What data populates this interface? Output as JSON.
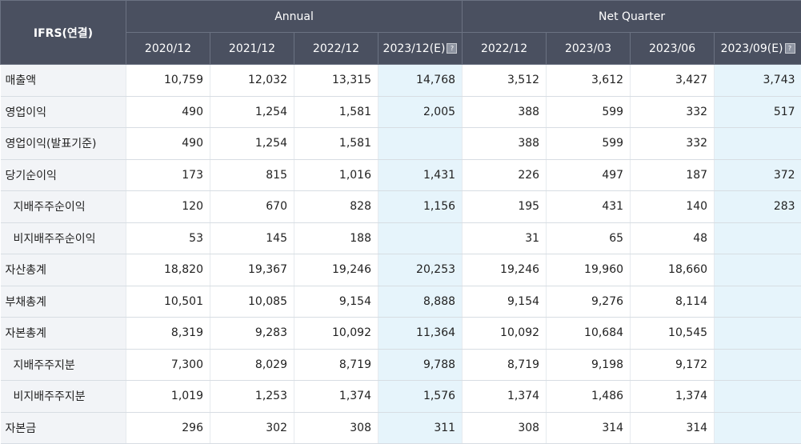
{
  "header": {
    "corner": "IFRS(연결)",
    "annual": "Annual",
    "quarter": "Net Quarter",
    "columns": [
      "2020/12",
      "2021/12",
      "2022/12",
      "2023/12(E)",
      "2022/12",
      "2023/03",
      "2023/06",
      "2023/09(E)"
    ]
  },
  "rows": [
    {
      "label": "매출액",
      "values": [
        "10,759",
        "12,032",
        "13,315",
        "14,768",
        "3,512",
        "3,612",
        "3,427",
        "3,743"
      ]
    },
    {
      "label": "영업이익",
      "values": [
        "490",
        "1,254",
        "1,581",
        "2,005",
        "388",
        "599",
        "332",
        "517"
      ]
    },
    {
      "label": "영업이익(발표기준)",
      "values": [
        "490",
        "1,254",
        "1,581",
        "",
        "388",
        "599",
        "332",
        ""
      ]
    },
    {
      "label": "당기순이익",
      "values": [
        "173",
        "815",
        "1,016",
        "1,431",
        "226",
        "497",
        "187",
        "372"
      ]
    },
    {
      "label": "지배주주순이익",
      "values": [
        "120",
        "670",
        "828",
        "1,156",
        "195",
        "431",
        "140",
        "283"
      ]
    },
    {
      "label": "비지배주주순이익",
      "values": [
        "53",
        "145",
        "188",
        "",
        "31",
        "65",
        "48",
        ""
      ]
    },
    {
      "label": "자산총계",
      "values": [
        "18,820",
        "19,367",
        "19,246",
        "20,253",
        "19,246",
        "19,960",
        "18,660",
        ""
      ]
    },
    {
      "label": "부채총계",
      "values": [
        "10,501",
        "10,085",
        "9,154",
        "8,888",
        "9,154",
        "9,276",
        "8,114",
        ""
      ]
    },
    {
      "label": "자본총계",
      "values": [
        "8,319",
        "9,283",
        "10,092",
        "11,364",
        "10,092",
        "10,684",
        "10,545",
        ""
      ]
    },
    {
      "label": "지배주주지분",
      "values": [
        "7,300",
        "8,029",
        "8,719",
        "9,788",
        "8,719",
        "9,198",
        "9,172",
        ""
      ]
    },
    {
      "label": "비지배주주지분",
      "values": [
        "1,019",
        "1,253",
        "1,374",
        "1,576",
        "1,374",
        "1,486",
        "1,374",
        ""
      ]
    },
    {
      "label": "자본금",
      "values": [
        "296",
        "302",
        "308",
        "311",
        "308",
        "314",
        "314",
        ""
      ]
    }
  ]
}
